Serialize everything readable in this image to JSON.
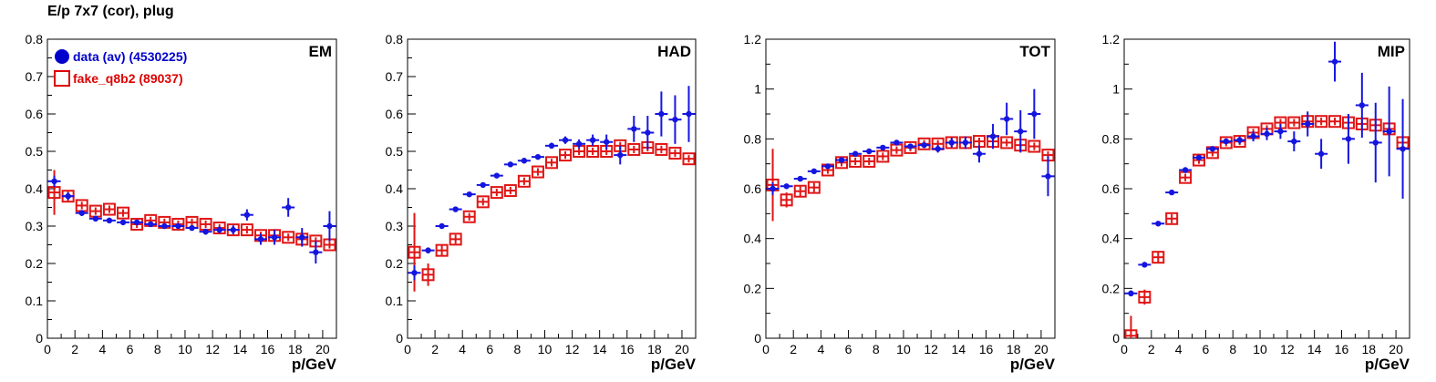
{
  "title": "E/p 7x7 (cor), plug",
  "legend": {
    "items": [
      {
        "label": "data (av) (4530225)",
        "color": "#0000cc",
        "marker": "filled-circle"
      },
      {
        "label": "fake_q8b2 (89037)",
        "color": "#dd0000",
        "marker": "open-square"
      }
    ]
  },
  "colors": {
    "data": "#1515e0",
    "fake": "#e01515"
  },
  "chart_data": [
    {
      "type": "scatter",
      "title": "EM",
      "xlabel": "p/GeV",
      "xlim": [
        0,
        21
      ],
      "ylim": [
        0,
        0.8
      ],
      "xticks": [
        "0",
        "2",
        "4",
        "6",
        "8",
        "10",
        "12",
        "14",
        "16",
        "18",
        "20"
      ],
      "yticks": [
        "0",
        "0.1",
        "0.2",
        "0.3",
        "0.4",
        "0.5",
        "0.6",
        "0.7",
        "0.8"
      ],
      "series": [
        {
          "name": "data (av) (4530225)",
          "x": [
            0.5,
            1.5,
            2.5,
            3.5,
            4.5,
            5.5,
            6.5,
            7.5,
            8.5,
            9.5,
            10.5,
            11.5,
            12.5,
            13.5,
            14.5,
            15.5,
            16.5,
            17.5,
            18.5,
            19.5,
            20.5
          ],
          "y": [
            0.42,
            0.38,
            0.335,
            0.32,
            0.315,
            0.31,
            0.31,
            0.305,
            0.3,
            0.3,
            0.295,
            0.285,
            0.29,
            0.29,
            0.33,
            0.265,
            0.27,
            0.35,
            0.27,
            0.23,
            0.3
          ],
          "yerr": [
            0.015,
            0.01,
            0.008,
            0.007,
            0.006,
            0.006,
            0.006,
            0.006,
            0.006,
            0.006,
            0.007,
            0.008,
            0.009,
            0.012,
            0.015,
            0.015,
            0.02,
            0.025,
            0.025,
            0.03,
            0.04
          ]
        },
        {
          "name": "fake_q8b2 (89037)",
          "x": [
            0.5,
            1.5,
            2.5,
            3.5,
            4.5,
            5.5,
            6.5,
            7.5,
            8.5,
            9.5,
            10.5,
            11.5,
            12.5,
            13.5,
            14.5,
            15.5,
            16.5,
            17.5,
            18.5,
            19.5,
            20.5
          ],
          "y": [
            0.39,
            0.38,
            0.355,
            0.34,
            0.345,
            0.335,
            0.305,
            0.315,
            0.31,
            0.305,
            0.31,
            0.305,
            0.295,
            0.29,
            0.29,
            0.275,
            0.275,
            0.27,
            0.265,
            0.26,
            0.25
          ],
          "yerr": [
            0.06,
            0.015,
            0.01,
            0.01,
            0.01,
            0.01,
            0.01,
            0.01,
            0.01,
            0.01,
            0.01,
            0.01,
            0.01,
            0.01,
            0.01,
            0.01,
            0.01,
            0.01,
            0.01,
            0.01,
            0.01
          ]
        }
      ]
    },
    {
      "type": "scatter",
      "title": "HAD",
      "xlabel": "p/GeV",
      "xlim": [
        0,
        21
      ],
      "ylim": [
        0,
        0.8
      ],
      "xticks": [
        "0",
        "2",
        "4",
        "6",
        "8",
        "10",
        "12",
        "14",
        "16",
        "18",
        "20"
      ],
      "yticks": [
        "0",
        "0.1",
        "0.2",
        "0.3",
        "0.4",
        "0.5",
        "0.6",
        "0.7",
        "0.8"
      ],
      "series": [
        {
          "name": "data (av) (4530225)",
          "x": [
            0.5,
            1.5,
            2.5,
            3.5,
            4.5,
            5.5,
            6.5,
            7.5,
            8.5,
            9.5,
            10.5,
            11.5,
            12.5,
            13.5,
            14.5,
            15.5,
            16.5,
            17.5,
            18.5,
            19.5,
            20.5
          ],
          "y": [
            0.175,
            0.235,
            0.3,
            0.345,
            0.385,
            0.41,
            0.435,
            0.465,
            0.475,
            0.485,
            0.515,
            0.53,
            0.52,
            0.53,
            0.525,
            0.49,
            0.56,
            0.55,
            0.6,
            0.585,
            0.6
          ],
          "yerr": [
            0.02,
            0.008,
            0.006,
            0.005,
            0.005,
            0.005,
            0.005,
            0.006,
            0.006,
            0.007,
            0.008,
            0.01,
            0.012,
            0.015,
            0.02,
            0.025,
            0.035,
            0.045,
            0.06,
            0.065,
            0.075
          ]
        },
        {
          "name": "fake_q8b2 (89037)",
          "x": [
            0.5,
            1.5,
            2.5,
            3.5,
            4.5,
            5.5,
            6.5,
            7.5,
            8.5,
            9.5,
            10.5,
            11.5,
            12.5,
            13.5,
            14.5,
            15.5,
            16.5,
            17.5,
            18.5,
            19.5,
            20.5
          ],
          "y": [
            0.23,
            0.17,
            0.235,
            0.265,
            0.325,
            0.365,
            0.39,
            0.395,
            0.42,
            0.445,
            0.47,
            0.49,
            0.5,
            0.5,
            0.5,
            0.515,
            0.505,
            0.51,
            0.505,
            0.495,
            0.48
          ],
          "yerr": [
            0.105,
            0.03,
            0.015,
            0.012,
            0.01,
            0.01,
            0.01,
            0.01,
            0.01,
            0.01,
            0.01,
            0.01,
            0.01,
            0.01,
            0.01,
            0.01,
            0.01,
            0.01,
            0.01,
            0.01,
            0.01
          ]
        }
      ]
    },
    {
      "type": "scatter",
      "title": "TOT",
      "xlabel": "p/GeV",
      "xlim": [
        0,
        21
      ],
      "ylim": [
        0,
        1.2
      ],
      "xticks": [
        "0",
        "2",
        "4",
        "6",
        "8",
        "10",
        "12",
        "14",
        "16",
        "18",
        "20"
      ],
      "yticks": [
        "0",
        "0.2",
        "0.4",
        "0.6",
        "0.8",
        "1",
        "1.2"
      ],
      "series": [
        {
          "name": "data (av) (4530225)",
          "x": [
            0.5,
            1.5,
            2.5,
            3.5,
            4.5,
            5.5,
            6.5,
            7.5,
            8.5,
            9.5,
            10.5,
            11.5,
            12.5,
            13.5,
            14.5,
            15.5,
            16.5,
            17.5,
            18.5,
            19.5,
            20.5
          ],
          "y": [
            0.6,
            0.61,
            0.64,
            0.67,
            0.69,
            0.715,
            0.74,
            0.75,
            0.765,
            0.785,
            0.77,
            0.775,
            0.76,
            0.785,
            0.785,
            0.74,
            0.81,
            0.88,
            0.83,
            0.9,
            0.65
          ],
          "yerr": [
            0.025,
            0.01,
            0.008,
            0.007,
            0.007,
            0.007,
            0.007,
            0.008,
            0.008,
            0.009,
            0.01,
            0.012,
            0.015,
            0.02,
            0.025,
            0.035,
            0.05,
            0.065,
            0.085,
            0.1,
            0.08
          ]
        },
        {
          "name": "fake_q8b2 (89037)",
          "x": [
            0.5,
            1.5,
            2.5,
            3.5,
            4.5,
            5.5,
            6.5,
            7.5,
            8.5,
            9.5,
            10.5,
            11.5,
            12.5,
            13.5,
            14.5,
            15.5,
            16.5,
            17.5,
            18.5,
            19.5,
            20.5
          ],
          "y": [
            0.615,
            0.555,
            0.59,
            0.605,
            0.675,
            0.705,
            0.71,
            0.71,
            0.73,
            0.755,
            0.765,
            0.78,
            0.78,
            0.785,
            0.785,
            0.79,
            0.79,
            0.785,
            0.775,
            0.77,
            0.735
          ],
          "yerr": [
            0.145,
            0.03,
            0.02,
            0.018,
            0.015,
            0.015,
            0.015,
            0.015,
            0.015,
            0.015,
            0.015,
            0.015,
            0.015,
            0.015,
            0.015,
            0.015,
            0.015,
            0.015,
            0.015,
            0.015,
            0.015
          ]
        }
      ]
    },
    {
      "type": "scatter",
      "title": "MIP",
      "xlabel": "p/GeV",
      "xlim": [
        0,
        21
      ],
      "ylim": [
        0,
        1.2
      ],
      "xticks": [
        "0",
        "2",
        "4",
        "6",
        "8",
        "10",
        "12",
        "14",
        "16",
        "18",
        "20"
      ],
      "yticks": [
        "0",
        "0.2",
        "0.4",
        "0.6",
        "0.8",
        "1",
        "1.2"
      ],
      "series": [
        {
          "name": "data (av) (4530225)",
          "x": [
            0.5,
            1.5,
            2.5,
            3.5,
            4.5,
            5.5,
            6.5,
            7.5,
            8.5,
            9.5,
            10.5,
            11.5,
            12.5,
            13.5,
            14.5,
            15.5,
            16.5,
            17.5,
            18.5,
            19.5,
            20.5
          ],
          "y": [
            0.18,
            0.295,
            0.46,
            0.585,
            0.675,
            0.725,
            0.76,
            0.79,
            0.795,
            0.81,
            0.82,
            0.83,
            0.79,
            0.86,
            0.74,
            1.11,
            0.8,
            0.935,
            0.785,
            0.83,
            0.76
          ],
          "yerr": [
            0.012,
            0.008,
            0.007,
            0.007,
            0.008,
            0.009,
            0.01,
            0.012,
            0.015,
            0.02,
            0.025,
            0.03,
            0.04,
            0.05,
            0.06,
            0.08,
            0.1,
            0.13,
            0.16,
            0.18,
            0.2
          ]
        },
        {
          "name": "fake_q8b2 (89037)",
          "x": [
            0.5,
            1.5,
            2.5,
            3.5,
            4.5,
            5.5,
            6.5,
            7.5,
            8.5,
            9.5,
            10.5,
            11.5,
            12.5,
            13.5,
            14.5,
            15.5,
            16.5,
            17.5,
            18.5,
            19.5,
            20.5
          ],
          "y": [
            0.01,
            0.165,
            0.325,
            0.48,
            0.645,
            0.715,
            0.745,
            0.785,
            0.79,
            0.825,
            0.84,
            0.865,
            0.865,
            0.87,
            0.87,
            0.87,
            0.865,
            0.86,
            0.855,
            0.84,
            0.785
          ],
          "yerr": [
            0.08,
            0.03,
            0.02,
            0.018,
            0.015,
            0.015,
            0.015,
            0.015,
            0.015,
            0.015,
            0.015,
            0.015,
            0.015,
            0.015,
            0.015,
            0.015,
            0.015,
            0.015,
            0.015,
            0.015,
            0.015
          ]
        }
      ]
    }
  ]
}
